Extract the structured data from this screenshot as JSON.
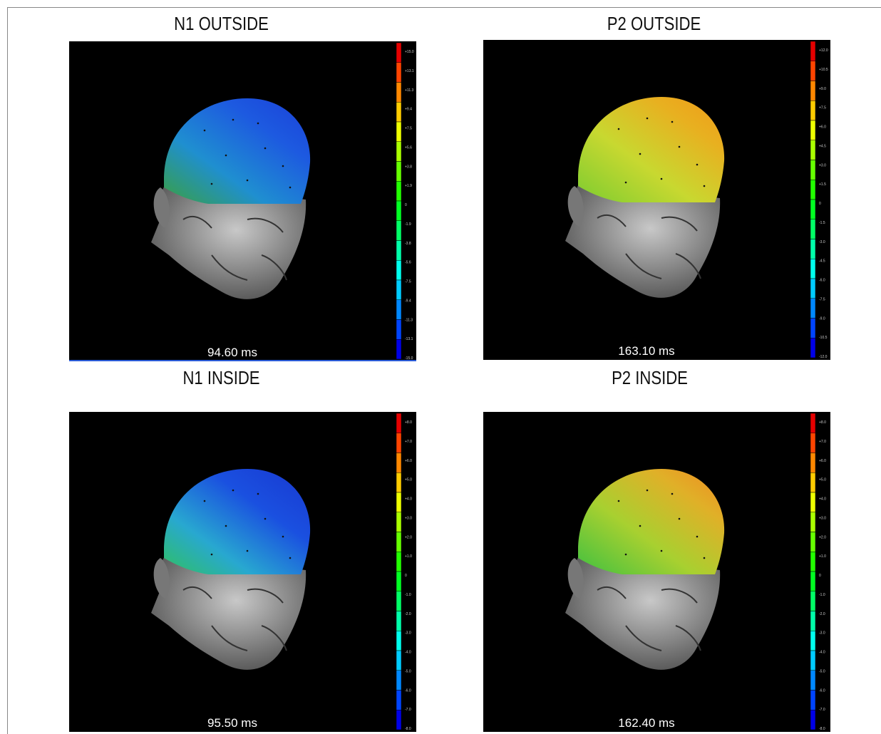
{
  "panels": [
    {
      "title": "N1 OUTSIDE",
      "time": "94.60 ms",
      "scale": [
        "+15.0",
        "+13.1",
        "+11.3",
        "+9.4",
        "+7.5",
        "+5.6",
        "+3.8",
        "+1.9",
        "0",
        "-1.9",
        "-3.8",
        "-5.6",
        "-7.5",
        "-9.4",
        "-11.3",
        "-13.1",
        "-15.0"
      ]
    },
    {
      "title": "P2 OUTSIDE",
      "time": "163.10 ms",
      "scale": [
        "+12.0",
        "+10.5",
        "+9.0",
        "+7.5",
        "+6.0",
        "+4.5",
        "+3.0",
        "+1.5",
        "0",
        "-1.5",
        "-3.0",
        "-4.5",
        "-6.0",
        "-7.5",
        "-9.0",
        "-10.5",
        "-12.0"
      ]
    },
    {
      "title": "N1 INSIDE",
      "time": "95.50 ms",
      "scale": [
        "+8.0",
        "+7.0",
        "+6.0",
        "+5.0",
        "+4.0",
        "+3.0",
        "+2.0",
        "+1.0",
        "0",
        "-1.0",
        "-2.0",
        "-3.0",
        "-4.0",
        "-5.0",
        "-6.0",
        "-7.0",
        "-8.0"
      ]
    },
    {
      "title": "P2 INSIDE",
      "time": "162.40 ms",
      "scale": [
        "+8.0",
        "+7.0",
        "+6.0",
        "+5.0",
        "+4.0",
        "+3.0",
        "+2.0",
        "+1.0",
        "0",
        "-1.0",
        "-2.0",
        "-3.0",
        "-4.0",
        "-5.0",
        "-6.0",
        "-7.0",
        "-8.0"
      ]
    }
  ]
}
